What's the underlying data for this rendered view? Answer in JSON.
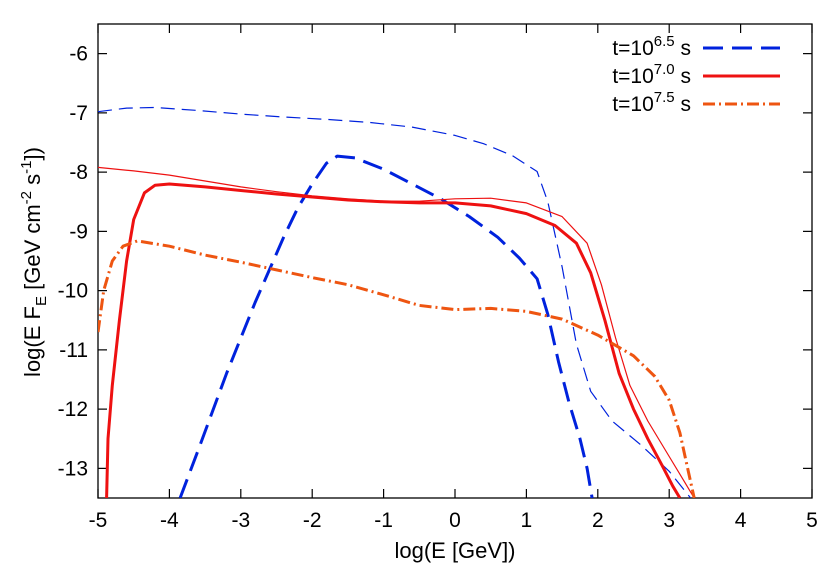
{
  "chart_data": {
    "type": "line",
    "xlabel": "log(E [GeV])",
    "ylabel": "log(E F_E [GeV cm^-2 s^-1])",
    "xlim": [
      -5,
      5
    ],
    "ylim": [
      -13.5,
      -5.5
    ],
    "xticks": [
      "-5",
      "-4",
      "-3",
      "-2",
      "-1",
      "0",
      "1",
      "2",
      "3",
      "4",
      "5"
    ],
    "yticks": [
      "-6",
      "-7",
      "-8",
      "-9",
      "-10",
      "-11",
      "-12",
      "-13"
    ],
    "grid": false,
    "legend_position": "top-right",
    "series": [
      {
        "name": "t=10^6.5 s",
        "color": "#0022dd",
        "style": "dashed",
        "width": "thick",
        "points": [
          [
            -3.85,
            -13.5
          ],
          [
            -3.6,
            -12.7
          ],
          [
            -3.2,
            -11.4
          ],
          [
            -2.8,
            -10.2
          ],
          [
            -2.4,
            -9.1
          ],
          [
            -2.2,
            -8.6
          ],
          [
            -2.0,
            -8.2
          ],
          [
            -1.8,
            -7.85
          ],
          [
            -1.65,
            -7.73
          ],
          [
            -1.4,
            -7.76
          ],
          [
            -1.0,
            -7.95
          ],
          [
            -0.6,
            -8.2
          ],
          [
            -0.2,
            -8.45
          ],
          [
            0.2,
            -8.75
          ],
          [
            0.6,
            -9.1
          ],
          [
            0.9,
            -9.45
          ],
          [
            1.15,
            -9.8
          ],
          [
            1.3,
            -10.4
          ],
          [
            1.45,
            -11.2
          ],
          [
            1.6,
            -11.9
          ],
          [
            1.75,
            -12.5
          ],
          [
            1.85,
            -13.0
          ],
          [
            1.92,
            -13.5
          ]
        ]
      },
      {
        "name": "",
        "color": "#0022dd",
        "style": "dashed",
        "width": "thin",
        "points": [
          [
            -5,
            -6.98
          ],
          [
            -4.6,
            -6.92
          ],
          [
            -4.2,
            -6.91
          ],
          [
            -3.6,
            -6.96
          ],
          [
            -3.0,
            -7.02
          ],
          [
            -2.4,
            -7.07
          ],
          [
            -1.8,
            -7.11
          ],
          [
            -1.2,
            -7.16
          ],
          [
            -0.6,
            -7.24
          ],
          [
            0.0,
            -7.38
          ],
          [
            0.4,
            -7.52
          ],
          [
            0.8,
            -7.72
          ],
          [
            1.15,
            -7.99
          ],
          [
            1.3,
            -8.5
          ],
          [
            1.5,
            -9.6
          ],
          [
            1.7,
            -10.9
          ],
          [
            1.9,
            -11.7
          ],
          [
            2.2,
            -12.2
          ],
          [
            2.6,
            -12.6
          ],
          [
            3.0,
            -13.05
          ],
          [
            3.3,
            -13.5
          ]
        ]
      },
      {
        "name": "t=10^7.0 s",
        "color": "#ee1111",
        "style": "solid",
        "width": "thick",
        "points": [
          [
            -4.88,
            -13.5
          ],
          [
            -4.86,
            -12.5
          ],
          [
            -4.8,
            -11.6
          ],
          [
            -4.7,
            -10.5
          ],
          [
            -4.6,
            -9.5
          ],
          [
            -4.5,
            -8.8
          ],
          [
            -4.35,
            -8.35
          ],
          [
            -4.2,
            -8.22
          ],
          [
            -4.0,
            -8.2
          ],
          [
            -3.5,
            -8.25
          ],
          [
            -3.0,
            -8.31
          ],
          [
            -2.5,
            -8.37
          ],
          [
            -2.0,
            -8.42
          ],
          [
            -1.5,
            -8.47
          ],
          [
            -1.0,
            -8.5
          ],
          [
            -0.5,
            -8.52
          ],
          [
            0.0,
            -8.52
          ],
          [
            0.5,
            -8.57
          ],
          [
            1.0,
            -8.7
          ],
          [
            1.4,
            -8.9
          ],
          [
            1.7,
            -9.2
          ],
          [
            1.9,
            -9.7
          ],
          [
            2.1,
            -10.5
          ],
          [
            2.3,
            -11.4
          ],
          [
            2.5,
            -12.0
          ],
          [
            2.7,
            -12.5
          ],
          [
            2.9,
            -12.95
          ],
          [
            3.05,
            -13.3
          ],
          [
            3.15,
            -13.5
          ]
        ]
      },
      {
        "name": "",
        "color": "#ee1111",
        "style": "solid",
        "width": "thin",
        "points": [
          [
            -5,
            -7.92
          ],
          [
            -4.5,
            -7.98
          ],
          [
            -4.0,
            -8.05
          ],
          [
            -3.5,
            -8.15
          ],
          [
            -3.0,
            -8.25
          ],
          [
            -2.5,
            -8.33
          ],
          [
            -2.0,
            -8.4
          ],
          [
            -1.5,
            -8.45
          ],
          [
            -1.0,
            -8.49
          ],
          [
            -0.5,
            -8.49
          ],
          [
            0.0,
            -8.45
          ],
          [
            0.5,
            -8.44
          ],
          [
            1.0,
            -8.52
          ],
          [
            1.5,
            -8.75
          ],
          [
            1.85,
            -9.2
          ],
          [
            2.05,
            -9.9
          ],
          [
            2.25,
            -10.8
          ],
          [
            2.45,
            -11.6
          ],
          [
            2.7,
            -12.2
          ],
          [
            3.0,
            -12.8
          ],
          [
            3.2,
            -13.2
          ],
          [
            3.35,
            -13.5
          ]
        ]
      },
      {
        "name": "t=10^7.5 s",
        "color": "#ee5511",
        "style": "dash-dot",
        "width": "thick",
        "points": [
          [
            -5,
            -10.7
          ],
          [
            -4.92,
            -10.0
          ],
          [
            -4.8,
            -9.5
          ],
          [
            -4.65,
            -9.25
          ],
          [
            -4.45,
            -9.16
          ],
          [
            -4.0,
            -9.25
          ],
          [
            -3.5,
            -9.4
          ],
          [
            -3.0,
            -9.52
          ],
          [
            -2.5,
            -9.65
          ],
          [
            -2.0,
            -9.78
          ],
          [
            -1.5,
            -9.9
          ],
          [
            -1.0,
            -10.07
          ],
          [
            -0.5,
            -10.25
          ],
          [
            0.0,
            -10.32
          ],
          [
            0.5,
            -10.3
          ],
          [
            1.0,
            -10.35
          ],
          [
            1.5,
            -10.48
          ],
          [
            2.0,
            -10.75
          ],
          [
            2.5,
            -11.1
          ],
          [
            2.8,
            -11.45
          ],
          [
            3.0,
            -11.85
          ],
          [
            3.15,
            -12.4
          ],
          [
            3.25,
            -12.95
          ],
          [
            3.35,
            -13.5
          ]
        ]
      }
    ]
  },
  "legend": [
    {
      "prefix": "t=10",
      "exponent": "6.5",
      "unit": "s"
    },
    {
      "prefix": "t=10",
      "exponent": "7.0",
      "unit": "s"
    },
    {
      "prefix": "t=10",
      "exponent": "7.5",
      "unit": "s"
    }
  ],
  "ylabel_parts": {
    "base": "log(E F",
    "sub_E": "E",
    "bracket": " [GeV cm",
    "exp_cm": "-2",
    "s_part": " s",
    "exp_s": "-1",
    "close": "])"
  }
}
